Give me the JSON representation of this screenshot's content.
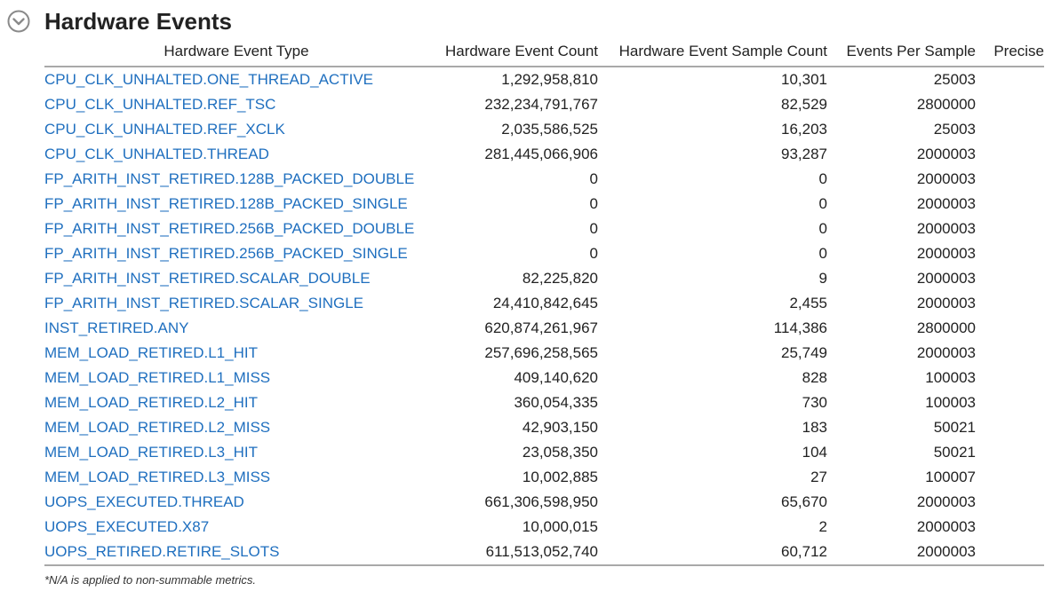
{
  "section": {
    "title": "Hardware Events",
    "toggle_icon": "chevron-down-circle-icon"
  },
  "table": {
    "columns": [
      "Hardware Event Type",
      "Hardware Event Count",
      "Hardware Event Sample Count",
      "Events Per Sample",
      "Precise"
    ],
    "rows": [
      {
        "type": "CPU_CLK_UNHALTED.ONE_THREAD_ACTIVE",
        "count": "1,292,958,810",
        "samples": "10,301",
        "per_sample": "25003"
      },
      {
        "type": "CPU_CLK_UNHALTED.REF_TSC",
        "count": "232,234,791,767",
        "samples": "82,529",
        "per_sample": "2800000"
      },
      {
        "type": "CPU_CLK_UNHALTED.REF_XCLK",
        "count": "2,035,586,525",
        "samples": "16,203",
        "per_sample": "25003"
      },
      {
        "type": "CPU_CLK_UNHALTED.THREAD",
        "count": "281,445,066,906",
        "samples": "93,287",
        "per_sample": "2000003"
      },
      {
        "type": "FP_ARITH_INST_RETIRED.128B_PACKED_DOUBLE",
        "count": "0",
        "samples": "0",
        "per_sample": "2000003"
      },
      {
        "type": "FP_ARITH_INST_RETIRED.128B_PACKED_SINGLE",
        "count": "0",
        "samples": "0",
        "per_sample": "2000003"
      },
      {
        "type": "FP_ARITH_INST_RETIRED.256B_PACKED_DOUBLE",
        "count": "0",
        "samples": "0",
        "per_sample": "2000003"
      },
      {
        "type": "FP_ARITH_INST_RETIRED.256B_PACKED_SINGLE",
        "count": "0",
        "samples": "0",
        "per_sample": "2000003"
      },
      {
        "type": "FP_ARITH_INST_RETIRED.SCALAR_DOUBLE",
        "count": "82,225,820",
        "samples": "9",
        "per_sample": "2000003"
      },
      {
        "type": "FP_ARITH_INST_RETIRED.SCALAR_SINGLE",
        "count": "24,410,842,645",
        "samples": "2,455",
        "per_sample": "2000003"
      },
      {
        "type": "INST_RETIRED.ANY",
        "count": "620,874,261,967",
        "samples": "114,386",
        "per_sample": "2800000"
      },
      {
        "type": "MEM_LOAD_RETIRED.L1_HIT",
        "count": "257,696,258,565",
        "samples": "25,749",
        "per_sample": "2000003"
      },
      {
        "type": "MEM_LOAD_RETIRED.L1_MISS",
        "count": "409,140,620",
        "samples": "828",
        "per_sample": "100003"
      },
      {
        "type": "MEM_LOAD_RETIRED.L2_HIT",
        "count": "360,054,335",
        "samples": "730",
        "per_sample": "100003"
      },
      {
        "type": "MEM_LOAD_RETIRED.L2_MISS",
        "count": "42,903,150",
        "samples": "183",
        "per_sample": "50021"
      },
      {
        "type": "MEM_LOAD_RETIRED.L3_HIT",
        "count": "23,058,350",
        "samples": "104",
        "per_sample": "50021"
      },
      {
        "type": "MEM_LOAD_RETIRED.L3_MISS",
        "count": "10,002,885",
        "samples": "27",
        "per_sample": "100007"
      },
      {
        "type": "UOPS_EXECUTED.THREAD",
        "count": "661,306,598,950",
        "samples": "65,670",
        "per_sample": "2000003"
      },
      {
        "type": "UOPS_EXECUTED.X87",
        "count": "10,000,015",
        "samples": "2",
        "per_sample": "2000003"
      },
      {
        "type": "UOPS_RETIRED.RETIRE_SLOTS",
        "count": "611,513,052,740",
        "samples": "60,712",
        "per_sample": "2000003"
      }
    ]
  },
  "footnote": "*N/A is applied to non-summable metrics.",
  "colors": {
    "link": "#1f6fbf",
    "text": "#222222",
    "rule": "#a9a9a9",
    "icon": "#8a8a8a"
  }
}
